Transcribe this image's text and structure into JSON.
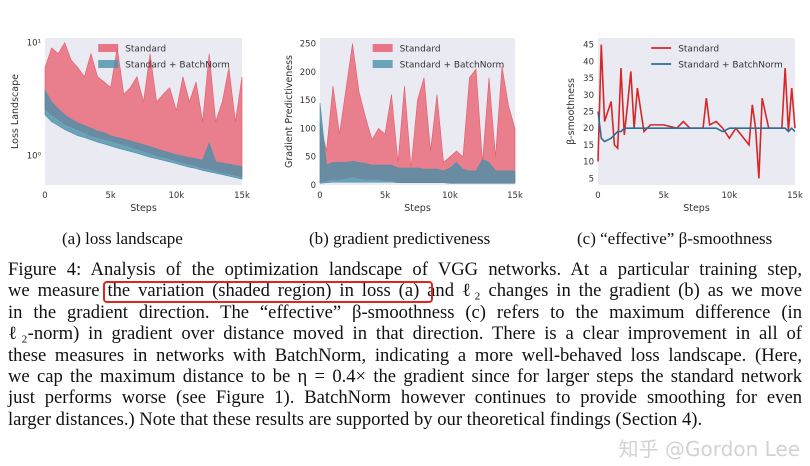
{
  "chart_data": [
    {
      "type": "area",
      "ylabel": "Loss Landscape",
      "xlabel": "Steps",
      "yscale": "log",
      "ylim": [
        0.55,
        11
      ],
      "xlim": [
        0,
        15000
      ],
      "xticks": [
        "0",
        "5k",
        "10k",
        "15k"
      ],
      "xtick_values": [
        0,
        5000,
        10000,
        15000
      ],
      "yticks": [
        "10¹",
        "10⁰"
      ],
      "ytick_values": [
        10,
        1
      ],
      "legend": "top-center",
      "grid": false,
      "x": [
        0,
        500,
        1000,
        1500,
        2000,
        2500,
        3000,
        3500,
        4000,
        4500,
        5000,
        5500,
        6000,
        6500,
        7000,
        7500,
        8000,
        8500,
        9000,
        9500,
        10000,
        10500,
        11000,
        11500,
        12000,
        12500,
        13000,
        13500,
        14000,
        14500,
        15000
      ],
      "series": [
        {
          "name": "Standard",
          "color": "#e8596a",
          "upper": [
            6,
            9,
            8,
            10,
            7,
            6,
            5,
            8,
            5,
            4.5,
            4,
            9,
            3.5,
            4,
            5,
            3,
            8,
            3,
            3.5,
            4,
            2.5,
            5,
            3,
            4.5,
            2,
            8,
            2,
            3,
            6,
            2,
            5
          ],
          "lower": [
            2.6,
            2.3,
            2.1,
            1.9,
            1.8,
            1.7,
            1.6,
            1.5,
            1.45,
            1.4,
            1.35,
            1.3,
            1.25,
            1.2,
            1.15,
            1.1,
            1.05,
            1.0,
            0.97,
            0.94,
            0.9,
            0.87,
            0.84,
            0.81,
            0.78,
            0.76,
            0.73,
            0.71,
            0.69,
            0.67,
            0.65
          ]
        },
        {
          "name": "Standard + BatchNorm",
          "color": "#4a90a8",
          "upper": [
            3.8,
            3.0,
            2.6,
            2.3,
            2.1,
            1.95,
            1.85,
            1.75,
            1.65,
            1.6,
            1.5,
            1.45,
            1.4,
            1.35,
            1.3,
            1.25,
            1.2,
            1.15,
            1.1,
            1.06,
            1.02,
            0.99,
            0.96,
            0.94,
            0.91,
            1.3,
            0.88,
            0.86,
            0.84,
            0.82,
            0.8
          ],
          "lower": [
            2.3,
            2.0,
            1.85,
            1.7,
            1.6,
            1.5,
            1.45,
            1.38,
            1.32,
            1.27,
            1.22,
            1.17,
            1.13,
            1.09,
            1.05,
            1.01,
            0.97,
            0.94,
            0.91,
            0.88,
            0.85,
            0.82,
            0.79,
            0.77,
            0.74,
            0.72,
            0.7,
            0.68,
            0.66,
            0.64,
            0.62
          ]
        }
      ]
    },
    {
      "type": "area",
      "ylabel": "Gradient Predictiveness",
      "xlabel": "Steps",
      "ylim": [
        0,
        260
      ],
      "xlim": [
        0,
        15000
      ],
      "xticks": [
        "0",
        "5k",
        "10k",
        "15k"
      ],
      "xtick_values": [
        0,
        5000,
        10000,
        15000
      ],
      "yticks": [
        "0",
        "50",
        "100",
        "150",
        "200",
        "250"
      ],
      "ytick_values": [
        0,
        50,
        100,
        150,
        200,
        250
      ],
      "legend": "top-center",
      "grid": false,
      "x": [
        0,
        500,
        1000,
        1500,
        2000,
        2500,
        3000,
        3500,
        4000,
        4500,
        5000,
        5500,
        6000,
        6500,
        7000,
        7500,
        8000,
        8500,
        9000,
        9500,
        10000,
        10500,
        11000,
        11500,
        12000,
        12500,
        13000,
        13500,
        14000,
        14500,
        15000
      ],
      "series": [
        {
          "name": "Standard",
          "color": "#e8596a",
          "upper": [
            110,
            60,
            175,
            90,
            170,
            250,
            165,
            120,
            80,
            100,
            90,
            160,
            40,
            175,
            30,
            150,
            190,
            60,
            160,
            40,
            50,
            60,
            50,
            190,
            205,
            40,
            190,
            50,
            210,
            140,
            100
          ],
          "lower": [
            5,
            8,
            10,
            10,
            12,
            15,
            12,
            10,
            10,
            10,
            8,
            8,
            5,
            5,
            5,
            5,
            5,
            5,
            5,
            4,
            4,
            4,
            4,
            4,
            4,
            4,
            4,
            4,
            4,
            4,
            4
          ]
        },
        {
          "name": "Standard + BatchNorm",
          "color": "#4a90a8",
          "upper": [
            145,
            35,
            40,
            40,
            40,
            42,
            40,
            38,
            35,
            35,
            35,
            35,
            30,
            30,
            30,
            30,
            28,
            28,
            28,
            25,
            30,
            40,
            28,
            25,
            25,
            45,
            40,
            25,
            25,
            25,
            25
          ],
          "lower": [
            3,
            4,
            5,
            5,
            5,
            5,
            5,
            5,
            5,
            5,
            5,
            5,
            4,
            4,
            4,
            4,
            4,
            4,
            4,
            4,
            3,
            3,
            3,
            3,
            3,
            3,
            3,
            3,
            3,
            3,
            3
          ]
        }
      ]
    },
    {
      "type": "line",
      "ylabel": "β-smoothness",
      "xlabel": "Steps",
      "ylim": [
        3,
        47
      ],
      "xlim": [
        0,
        15000
      ],
      "xticks": [
        "0",
        "5k",
        "10k",
        "15k"
      ],
      "xtick_values": [
        0,
        5000,
        10000,
        15000
      ],
      "yticks": [
        "5",
        "10",
        "15",
        "20",
        "25",
        "30",
        "35",
        "40",
        "45"
      ],
      "ytick_values": [
        5,
        10,
        15,
        20,
        25,
        30,
        35,
        40,
        45
      ],
      "legend": "top-center",
      "grid": false,
      "x": [
        0,
        250,
        500,
        1000,
        1250,
        1500,
        1750,
        2000,
        2250,
        2500,
        2750,
        3000,
        3500,
        4000,
        5000,
        6000,
        6500,
        7000,
        8000,
        8250,
        8500,
        9000,
        9500,
        10000,
        10500,
        11500,
        11750,
        12000,
        12250,
        12500,
        13000,
        14000,
        14250,
        14500,
        14750,
        15000
      ],
      "series": [
        {
          "name": "Standard",
          "color": "#d62728",
          "values": [
            10,
            45,
            22,
            28,
            15,
            14,
            38,
            18,
            27,
            37,
            20,
            32,
            19,
            21,
            21,
            20,
            22,
            20,
            20,
            29,
            21,
            22,
            20,
            17,
            20,
            15,
            27,
            20,
            5,
            29,
            20,
            20,
            38,
            19,
            32,
            20
          ]
        },
        {
          "name": "Standard + BatchNorm",
          "color": "#2a6f97",
          "values": [
            25,
            17,
            16,
            17,
            18,
            19,
            19,
            20,
            20,
            20,
            20,
            20,
            20,
            20,
            20,
            20,
            20,
            20,
            20,
            20,
            20,
            20,
            19,
            20,
            20,
            20,
            20,
            20,
            20,
            20,
            20,
            20,
            20,
            19,
            20,
            19
          ]
        }
      ]
    }
  ],
  "subcaptions": [
    "(a) loss landscape",
    "(b) gradient predictiveness",
    "(c) “effective” β-smoothness"
  ],
  "caption_lines": [
    "Figure 4: Analysis of the optimization landscape of VGG networks. At a particular training step,",
    "we measure the variation (shaded region) in loss (a) and ℓ₂ changes in the gradient (b) as we move",
    "in the gradient direction. The “effective” β-smoothness (c) refers to the maximum difference (in",
    "ℓ₂-norm) in gradient over distance moved in that direction. There is a clear improvement in all of",
    "these measures in networks with BatchNorm, indicating a more well-behaved loss landscape. (Here,",
    "we cap the maximum distance to be η = 0.4× the gradient since for larger steps the standard network",
    "just performs worse (see Figure 1). BatchNorm however continues to provide smoothing for even",
    "larger distances.) Note that these results are supported by our theoretical findings (Section 4)."
  ],
  "highlight": {
    "text": "the variation (shaded region) in loss (a)",
    "color": "#e0261b"
  },
  "watermark": "知乎 @Gordon Lee",
  "colors": {
    "plot_background": "#eaeaf2"
  }
}
